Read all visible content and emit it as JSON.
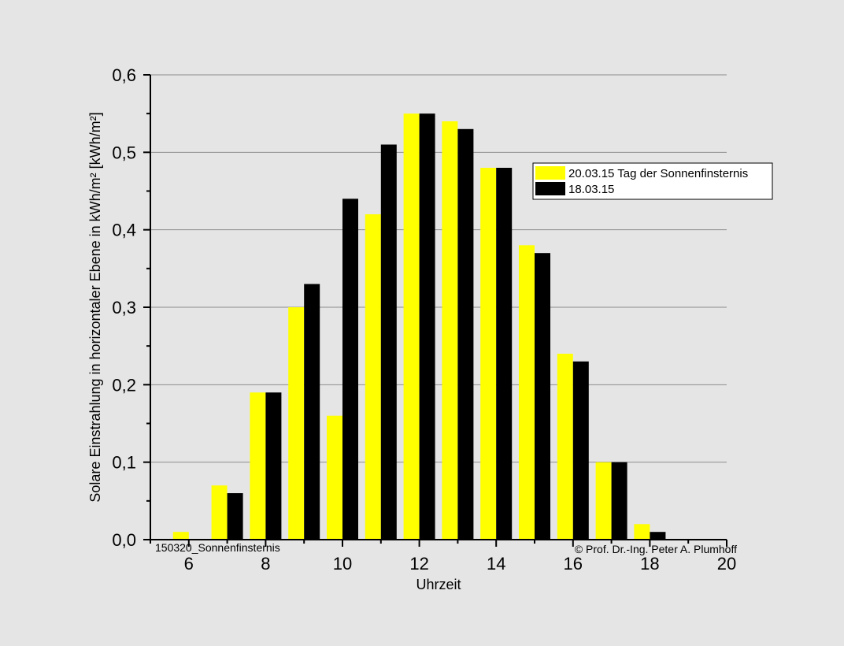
{
  "chart_data": {
    "type": "bar",
    "title": "",
    "xlabel": "Uhrzeit",
    "ylabel": "Solare Einstrahlung in horizontaler Ebene in kWh/m² [kWh/m²]",
    "xlim": [
      5,
      20
    ],
    "ylim": [
      0,
      0.6
    ],
    "x_ticks": [
      6,
      8,
      10,
      12,
      14,
      16,
      18,
      20
    ],
    "y_ticks": [
      0,
      0.1,
      0.2,
      0.3,
      0.4,
      0.5,
      0.6
    ],
    "y_tick_labels": [
      "0,0",
      "0,1",
      "0,2",
      "0,3",
      "0,4",
      "0,5",
      "0,6"
    ],
    "grid": "horizontal",
    "legend_position": "upper-right",
    "x": [
      6,
      7,
      8,
      9,
      10,
      11,
      12,
      13,
      14,
      15,
      16,
      17,
      18
    ],
    "series": [
      {
        "name": "20.03.15 Tag der Sonnenfinsternis",
        "color": "#ffff00",
        "values": [
          0.01,
          0.07,
          0.19,
          0.3,
          0.16,
          0.42,
          0.55,
          0.54,
          0.48,
          0.38,
          0.24,
          0.1,
          0.02
        ]
      },
      {
        "name": "18.03.15",
        "color": "#000000",
        "values": [
          0.0,
          0.06,
          0.19,
          0.33,
          0.44,
          0.51,
          0.55,
          0.53,
          0.48,
          0.37,
          0.23,
          0.1,
          0.01
        ]
      }
    ],
    "annotations": {
      "bottom_left": "150320_Sonnenfinsternis",
      "bottom_right": "© Prof. Dr.-Ing. Peter A. Plumhoff"
    }
  }
}
